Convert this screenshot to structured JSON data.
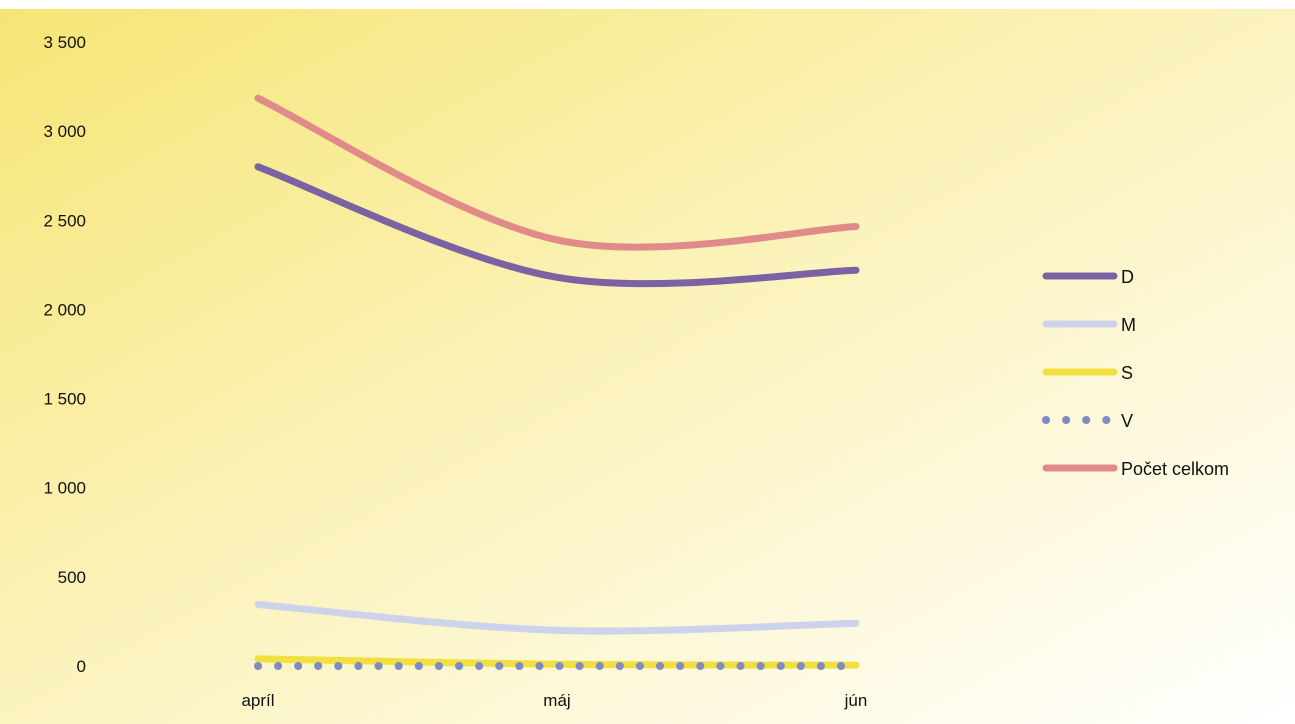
{
  "chart_data": {
    "type": "line",
    "categories": [
      "apríl",
      "máj",
      "jún"
    ],
    "series": [
      {
        "name": "D",
        "values": [
          2800,
          2180,
          2220
        ],
        "color": "#7b62a3",
        "style": "solid"
      },
      {
        "name": "M",
        "values": [
          345,
          200,
          240
        ],
        "color": "#ccd3ea",
        "style": "solid"
      },
      {
        "name": "S",
        "values": [
          40,
          10,
          5
        ],
        "color": "#f2e040",
        "style": "solid"
      },
      {
        "name": "V",
        "values": [
          0,
          0,
          0
        ],
        "color": "#7f8cc4",
        "style": "dotted"
      },
      {
        "name": "Počet celkom",
        "values": [
          3185,
          2390,
          2465
        ],
        "color": "#e08a8a",
        "style": "solid"
      }
    ],
    "y_ticks": [
      "0",
      "500",
      "1 000",
      "1 500",
      "2 000",
      "2 500",
      "3 000",
      "3 500"
    ],
    "ylim": [
      0,
      3500
    ],
    "smooth": true,
    "legend": "right",
    "grid": false
  }
}
